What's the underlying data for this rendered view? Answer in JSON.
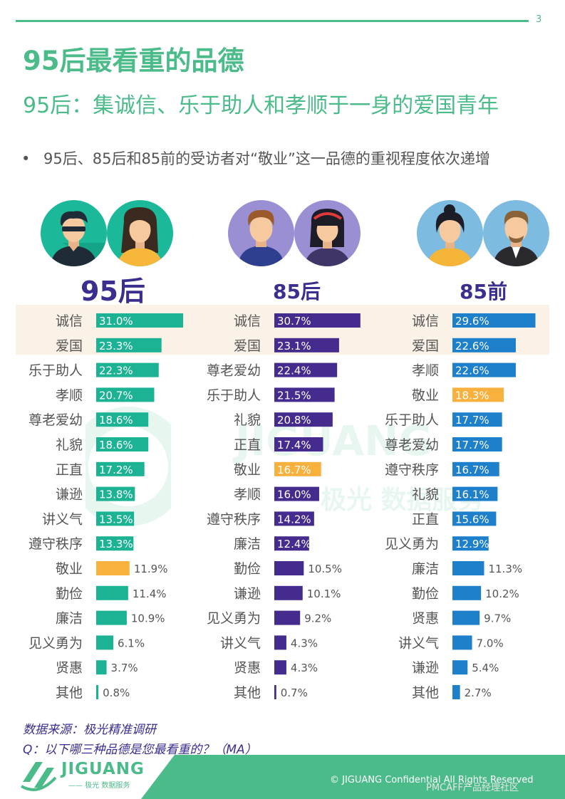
{
  "page": {
    "number": "3",
    "title": "95后最看重的品德",
    "subtitle": "95后：集诚信、乐于助人和孝顺于一身的爱国青年",
    "bullet_symbol": "•",
    "bullet": "95后、85后和85前的受访者对“敬业”这一品德的重视程度依次递增",
    "source": "数据来源：极光精准调研",
    "question": "Q：以下哪三种品德是您最看重的？（MA）",
    "watermark_text": "JIGUANG",
    "watermark_sub": "极光 数据服务",
    "logo_text": "JIGUANG",
    "logo_sub": "—— 极光 数据服务",
    "copyright": "© JIGUANG  Confidential  All Rights Reserved",
    "community": "PMCAFF产品经理社区"
  },
  "colors": {
    "accent": "#4cbb8a",
    "navy": "#3a2f8e",
    "gen95": "#1cb394",
    "gen85": "#442b8d",
    "gen85pre": "#1e7fcb",
    "highlight_value": "#f9b13d",
    "highlight_row": "#fbf2e7"
  },
  "avatars": [
    {
      "name": "avatar-95-male-icon",
      "bg": "#1bb89a"
    },
    {
      "name": "avatar-95-female-icon",
      "bg": "#1bb89a"
    },
    {
      "name": "avatar-85-male-icon",
      "bg": "#9b8fd4"
    },
    {
      "name": "avatar-85-female-icon",
      "bg": "#9b8fd4"
    },
    {
      "name": "avatar-85pre-female-icon",
      "bg": "#7dbbe0"
    },
    {
      "name": "avatar-85pre-male-icon",
      "bg": "#7dbbe0"
    }
  ],
  "chart_data": [
    {
      "type": "bar",
      "orientation": "horizontal",
      "title": "95后",
      "unit": "%",
      "categories": [
        "诚信",
        "爱国",
        "乐于助人",
        "孝顺",
        "尊老爱幼",
        "礼貌",
        "正直",
        "谦逊",
        "讲义气",
        "遵守秩序",
        "敬业",
        "勤俭",
        "廉洁",
        "见义勇为",
        "贤惠",
        "其他"
      ],
      "values": [
        31.0,
        23.3,
        22.3,
        20.7,
        18.6,
        18.6,
        17.2,
        13.8,
        13.5,
        13.3,
        11.9,
        11.4,
        10.9,
        6.1,
        3.7,
        0.8
      ],
      "labels": [
        "31.0%",
        "23.3%",
        "22.3%",
        "20.7%",
        "18.6%",
        "18.6%",
        "17.2%",
        "13.8%",
        "13.5%",
        "13.3%",
        "11.9%",
        "11.4%",
        "10.9%",
        "6.1%",
        "3.7%",
        "0.8%"
      ],
      "highlighted_category": "敬业"
    },
    {
      "type": "bar",
      "orientation": "horizontal",
      "title": "85后",
      "unit": "%",
      "categories": [
        "诚信",
        "爱国",
        "尊老爱幼",
        "乐于助人",
        "礼貌",
        "正直",
        "敬业",
        "孝顺",
        "遵守秩序",
        "廉洁",
        "勤俭",
        "谦逊",
        "见义勇为",
        "讲义气",
        "贤惠",
        "其他"
      ],
      "values": [
        30.7,
        23.1,
        22.4,
        21.5,
        20.8,
        17.4,
        16.7,
        16.0,
        14.2,
        12.4,
        10.5,
        10.1,
        9.2,
        4.3,
        4.3,
        0.7
      ],
      "labels": [
        "30.7%",
        "23.1%",
        "22.4%",
        "21.5%",
        "20.8%",
        "17.4%",
        "16.7%",
        "16.0%",
        "14.2%",
        "12.4%",
        "10.5%",
        "10.1%",
        "9.2%",
        "4.3%",
        "4.3%",
        "0.7%"
      ],
      "highlighted_category": "敬业"
    },
    {
      "type": "bar",
      "orientation": "horizontal",
      "title": "85前",
      "unit": "%",
      "categories": [
        "诚信",
        "爱国",
        "孝顺",
        "敬业",
        "乐于助人",
        "尊老爱幼",
        "遵守秩序",
        "礼貌",
        "正直",
        "见义勇为",
        "廉洁",
        "勤俭",
        "贤惠",
        "讲义气",
        "谦逊",
        "其他"
      ],
      "values": [
        29.6,
        22.6,
        22.6,
        18.3,
        17.7,
        17.7,
        16.7,
        16.1,
        15.6,
        12.9,
        11.3,
        10.2,
        9.7,
        7.0,
        5.4,
        2.7
      ],
      "labels": [
        "29.6%",
        "22.6%",
        "22.6%",
        "18.3%",
        "17.7%",
        "17.7%",
        "16.7%",
        "16.1%",
        "15.6%",
        "12.9%",
        "11.3%",
        "10.2%",
        "9.7%",
        "7.0%",
        "5.4%",
        "2.7%"
      ],
      "highlighted_category": "敬业"
    }
  ]
}
